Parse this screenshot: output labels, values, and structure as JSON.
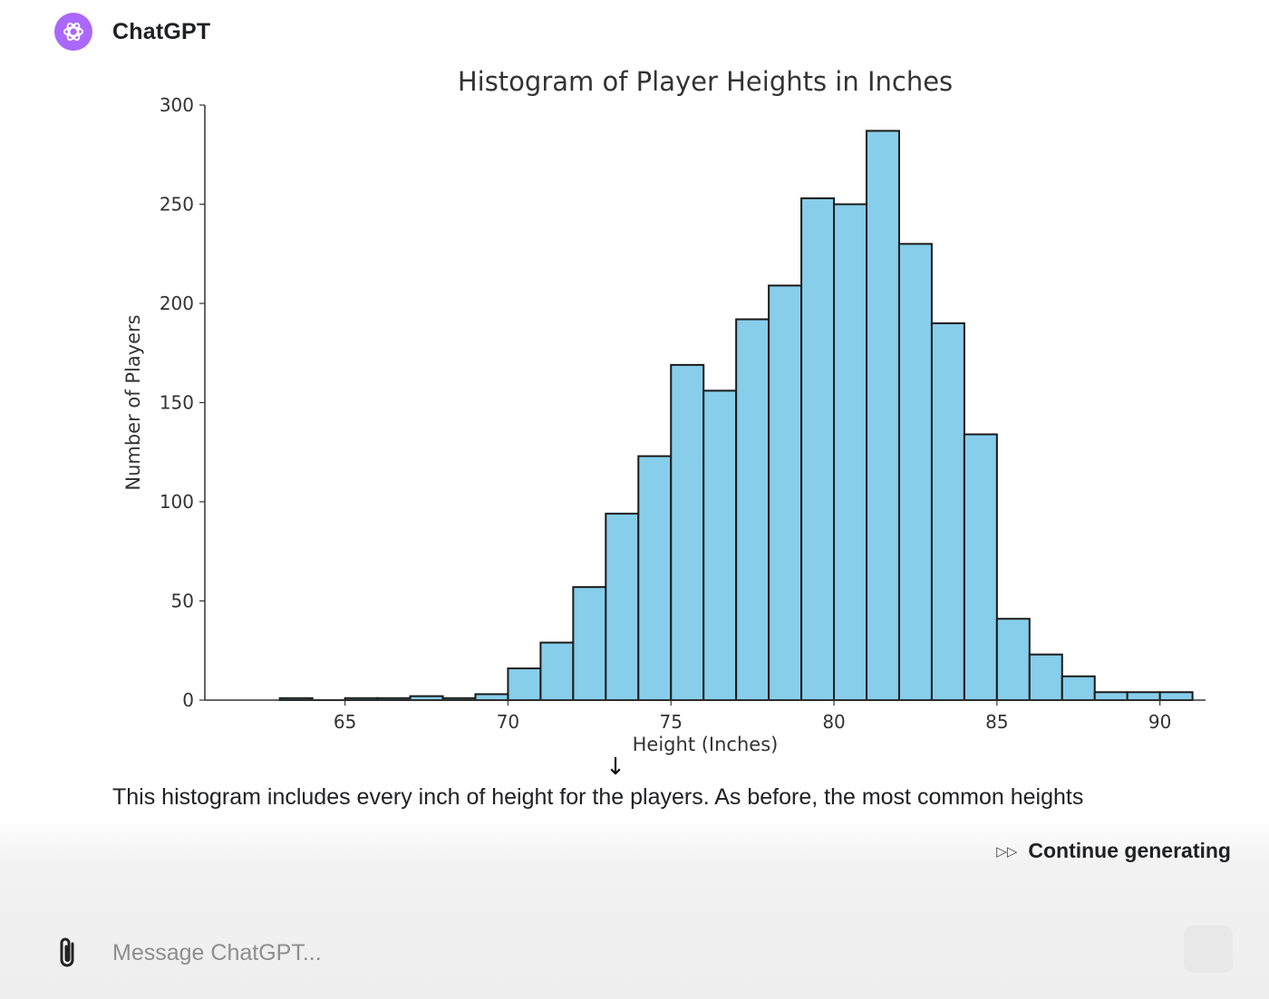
{
  "header": {
    "app_name": "ChatGPT",
    "avatar_icon": "openai-logo-icon",
    "avatar_color": "#ab68ff"
  },
  "chart_data": {
    "type": "bar",
    "title": "Histogram of Player Heights in Inches",
    "xlabel": "Height (Inches)",
    "ylabel": "Number of Players",
    "xlim": [
      60.7,
      91.4
    ],
    "ylim": [
      0,
      300
    ],
    "xticks": [
      65,
      70,
      75,
      80,
      85,
      90
    ],
    "yticks": [
      0,
      50,
      100,
      150,
      200,
      250,
      300
    ],
    "bin_edges": [
      63,
      64,
      65,
      66,
      67,
      68,
      69,
      70,
      71,
      72,
      73,
      74,
      75,
      76,
      77,
      78,
      79,
      80,
      81,
      82,
      83,
      84,
      85,
      86,
      87,
      88,
      89,
      90,
      91
    ],
    "values": [
      1,
      0,
      1,
      1,
      2,
      1,
      3,
      16,
      29,
      57,
      94,
      123,
      169,
      156,
      192,
      209,
      253,
      250,
      287,
      230,
      190,
      134,
      41,
      23,
      12,
      4,
      4,
      4
    ],
    "bar_color": "#87ceeb",
    "edge_color": "#1a1a1a",
    "grid": false
  },
  "message": {
    "scroll_icon": "arrow-down-icon",
    "text": "This histogram includes every inch of height for the players. As before, the most common heights"
  },
  "continue_button": {
    "label": "Continue generating",
    "icon": "fast-forward-icon"
  },
  "composer": {
    "placeholder": "Message ChatGPT...",
    "attach_icon": "paperclip-icon",
    "send_icon": "send-icon"
  }
}
